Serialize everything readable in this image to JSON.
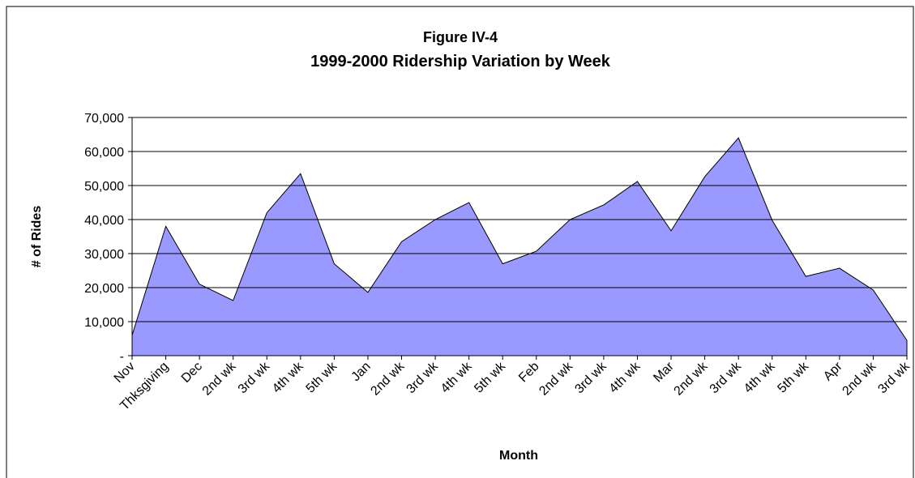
{
  "chart_data": {
    "type": "area",
    "title": "Figure IV-4",
    "subtitle": "1999-2000 Ridership Variation by Week",
    "x_label": "Month",
    "y_label": "# of Rides",
    "categories": [
      "Nov",
      "Thksgiving",
      "Dec",
      "2nd wk",
      "3rd wk",
      "4th wk",
      "5th wk",
      "Jan",
      "2nd wk",
      "3rd wk",
      "4th wk",
      "5th wk",
      "Feb",
      "2nd wk",
      "3rd wk",
      "4th wk",
      "Mar",
      "2nd wk",
      "3rd wk",
      "4th wk",
      "5th wk",
      "Apr",
      "2nd wk",
      "3rd wk"
    ],
    "values": [
      6000,
      38000,
      21000,
      16200,
      42000,
      53500,
      27000,
      18600,
      33500,
      40000,
      45000,
      27000,
      30700,
      40000,
      44300,
      51200,
      36700,
      52600,
      64000,
      39800,
      23300,
      25700,
      19300,
      4500
    ],
    "color": "#9999ff",
    "ylim": [
      0,
      70000
    ],
    "yticks": [
      {
        "value": 0,
        "label": "-"
      },
      {
        "value": 10000,
        "label": "10,000"
      },
      {
        "value": 20000,
        "label": "20,000"
      },
      {
        "value": 30000,
        "label": "30,000"
      },
      {
        "value": 40000,
        "label": "40,000"
      },
      {
        "value": 50000,
        "label": "50,000"
      },
      {
        "value": 60000,
        "label": "60,000"
      },
      {
        "value": 70000,
        "label": "70,000"
      }
    ],
    "grid": true
  }
}
